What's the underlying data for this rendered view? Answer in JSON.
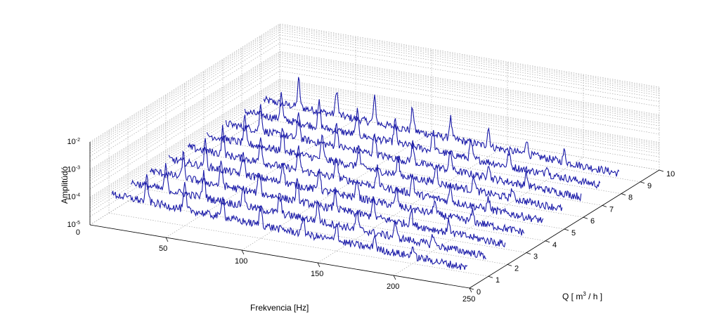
{
  "chart_data": {
    "type": "line",
    "view": "3d-waterfall",
    "title": "",
    "xlabel": "Frekvencia [Hz]",
    "ylabel_parts": {
      "prefix": "Q [ m",
      "sup": "3",
      "suffix": " / h ]"
    },
    "zlabel": "Amplitúdó",
    "xlim": [
      0,
      250
    ],
    "ylim": [
      0,
      10
    ],
    "zscale": "log",
    "zlim": [
      1e-05,
      0.01
    ],
    "xticks": [
      "50",
      "100",
      "150",
      "200",
      "250"
    ],
    "yticks": [
      "0",
      "1",
      "2",
      "3",
      "4",
      "5",
      "6",
      "7",
      "8",
      "9",
      "10"
    ],
    "zticks": [
      {
        "base": "10",
        "exp": "-5"
      },
      {
        "base": "10",
        "exp": "-4"
      },
      {
        "base": "10",
        "exp": "-3"
      },
      {
        "base": "10",
        "exp": "-2"
      }
    ],
    "z_zero_label": "0",
    "grid": true,
    "line_color": "#1a1aa8",
    "series": [
      {
        "q": 1,
        "peaks": [
          [
            25,
            3.8
          ],
          [
            50,
            3.6
          ],
          [
            75,
            3.3
          ],
          [
            100,
            3.0
          ],
          [
            128,
            2.6
          ],
          [
            150,
            2.9
          ],
          [
            175,
            2.0
          ],
          [
            200,
            1.5
          ]
        ]
      },
      {
        "q": 2,
        "peaks": [
          [
            25,
            3.6
          ],
          [
            50,
            3.7
          ],
          [
            76,
            3.0
          ],
          [
            100,
            3.2
          ],
          [
            125,
            2.8
          ],
          [
            151,
            2.7
          ],
          [
            176,
            2.2
          ],
          [
            201,
            1.6
          ]
        ]
      },
      {
        "q": 3,
        "peaks": [
          [
            24,
            3.5
          ],
          [
            49,
            3.5
          ],
          [
            74,
            3.4
          ],
          [
            99,
            2.9
          ],
          [
            124,
            2.7
          ],
          [
            149,
            2.8
          ],
          [
            174,
            2.1
          ],
          [
            199,
            1.7
          ]
        ]
      },
      {
        "q": 4,
        "peaks": [
          [
            26,
            3.7
          ],
          [
            51,
            3.4
          ],
          [
            77,
            3.1
          ],
          [
            101,
            3.3
          ],
          [
            126,
            2.9
          ],
          [
            152,
            2.6
          ],
          [
            177,
            2.0
          ],
          [
            202,
            1.5
          ]
        ]
      },
      {
        "q": 5,
        "peaks": [
          [
            25,
            3.9
          ],
          [
            50,
            3.8
          ],
          [
            75,
            3.2
          ],
          [
            100,
            3.1
          ],
          [
            127,
            2.7
          ],
          [
            150,
            2.8
          ],
          [
            175,
            2.3
          ],
          [
            200,
            1.6
          ]
        ]
      },
      {
        "q": 6,
        "peaks": [
          [
            27,
            3.6
          ],
          [
            52,
            3.5
          ],
          [
            78,
            3.3
          ],
          [
            102,
            3.0
          ],
          [
            128,
            2.6
          ],
          [
            153,
            2.7
          ],
          [
            178,
            2.1
          ],
          [
            203,
            1.4
          ]
        ]
      },
      {
        "q": 7,
        "peaks": [
          [
            25,
            3.8
          ],
          [
            50,
            3.9
          ],
          [
            75,
            3.4
          ],
          [
            100,
            3.2
          ],
          [
            125,
            2.8
          ],
          [
            150,
            2.9
          ],
          [
            175,
            2.2
          ],
          [
            200,
            1.7
          ]
        ]
      },
      {
        "q": 8,
        "peaks": [
          [
            26,
            3.7
          ],
          [
            51,
            3.6
          ],
          [
            76,
            3.5
          ],
          [
            101,
            3.3
          ],
          [
            126,
            2.9
          ],
          [
            151,
            2.6
          ],
          [
            176,
            2.0
          ],
          [
            201,
            1.5
          ]
        ]
      },
      {
        "q": 9,
        "peaks": [
          [
            25,
            4.0
          ],
          [
            50,
            3.7
          ],
          [
            75,
            3.6
          ],
          [
            100,
            3.4
          ],
          [
            125,
            3.0
          ],
          [
            150,
            2.7
          ],
          [
            175,
            2.3
          ],
          [
            200,
            1.6
          ]
        ]
      }
    ]
  }
}
